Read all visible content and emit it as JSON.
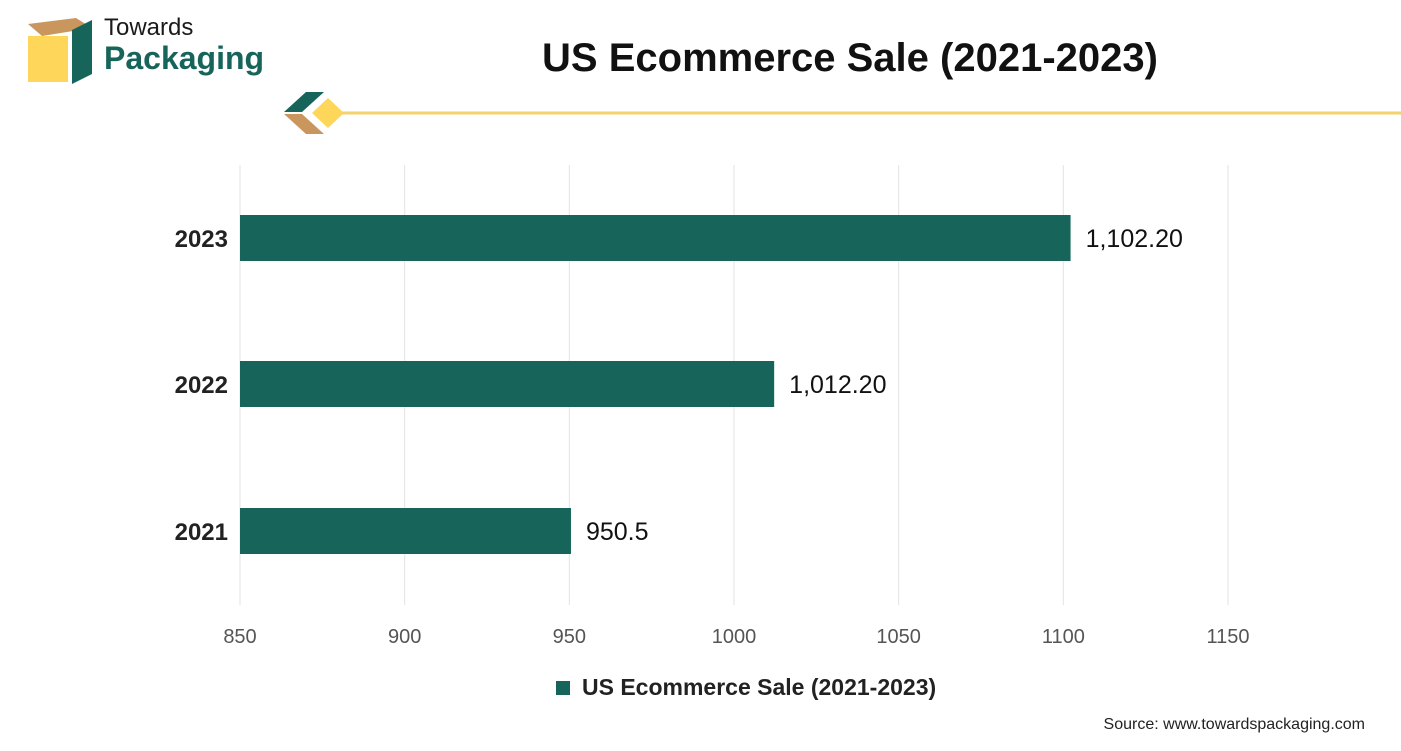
{
  "brand": {
    "line1": "Towards",
    "line2": "Packaging",
    "logo_colors": {
      "tan": "#c9975e",
      "yellow": "#fdd65a",
      "green": "#17655a"
    }
  },
  "header": {
    "title": "US Ecommerce Sale (2021-2023)"
  },
  "colors": {
    "bar": "#17655a",
    "accent_line": "#f3d16d",
    "grid": "#e3e3e3"
  },
  "chart_data": {
    "type": "bar",
    "orientation": "horizontal",
    "categories": [
      "2023",
      "2022",
      "2021"
    ],
    "series": [
      {
        "name": "US Ecommerce Sale (2021-2023)",
        "values": [
          1102.2,
          1012.2,
          950.5
        ]
      }
    ],
    "data_labels": [
      "1,102.20",
      "1,012.20",
      "950.5"
    ],
    "xlim": [
      850,
      1150
    ],
    "xticks": [
      850,
      900,
      950,
      1000,
      1050,
      1100,
      1150
    ],
    "grid": true,
    "legend_position": "bottom"
  },
  "legend": {
    "label": "US Ecommerce Sale (2021-2023)"
  },
  "footer": {
    "source": "Source: www.towardspackaging.com"
  }
}
